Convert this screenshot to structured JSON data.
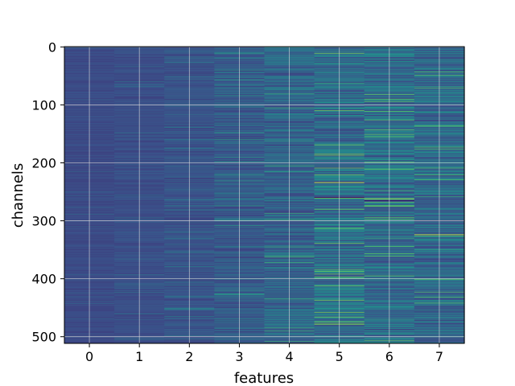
{
  "chart_data": {
    "type": "heatmap",
    "title": "",
    "xlabel": "features",
    "ylabel": "channels",
    "x_ticks": [
      0,
      1,
      2,
      3,
      4,
      5,
      6,
      7
    ],
    "y_ticks": [
      0,
      100,
      200,
      300,
      400,
      500
    ],
    "xlim": [
      -0.5,
      7.5
    ],
    "ylim": [
      511.5,
      -0.5
    ],
    "grid": true,
    "colormap": "viridis",
    "rows": 512,
    "columns": 8,
    "background_color": "#3b528b",
    "grid_color": "#d9d9d9",
    "column_intensity": [
      0.05,
      0.07,
      0.1,
      0.16,
      0.2,
      0.28,
      0.26,
      0.24
    ],
    "highlights": [
      {
        "feature": 4,
        "channel": 81,
        "value": 0.6
      },
      {
        "feature": 4,
        "channel": 162,
        "value": 0.55
      },
      {
        "feature": 4,
        "channel": 215,
        "value": 0.55
      },
      {
        "feature": 4,
        "channel": 266,
        "value": 0.45
      },
      {
        "feature": 4,
        "channel": 345,
        "value": 0.6
      },
      {
        "feature": 5,
        "channel": 8,
        "value": 0.55
      },
      {
        "feature": 5,
        "channel": 63,
        "value": 0.6
      },
      {
        "feature": 5,
        "channel": 182,
        "value": 0.5
      },
      {
        "feature": 5,
        "channel": 234,
        "value": 1.0
      },
      {
        "feature": 5,
        "channel": 260,
        "value": 0.0
      },
      {
        "feature": 5,
        "channel": 384,
        "value": 0.75
      },
      {
        "feature": 5,
        "channel": 435,
        "value": 0.55
      },
      {
        "feature": 6,
        "channel": 12,
        "value": 0.5
      },
      {
        "feature": 6,
        "channel": 210,
        "value": 0.55
      },
      {
        "feature": 6,
        "channel": 248,
        "value": 0.65
      },
      {
        "feature": 6,
        "channel": 262,
        "value": 0.95
      },
      {
        "feature": 6,
        "channel": 265,
        "value": 0.0
      },
      {
        "feature": 6,
        "channel": 330,
        "value": 0.6
      },
      {
        "feature": 6,
        "channel": 470,
        "value": 0.55
      },
      {
        "feature": 7,
        "channel": 68,
        "value": 0.55
      },
      {
        "feature": 7,
        "channel": 137,
        "value": 0.6
      },
      {
        "feature": 7,
        "channel": 200,
        "value": 0.5
      },
      {
        "feature": 7,
        "channel": 258,
        "value": 0.6
      },
      {
        "feature": 7,
        "channel": 300,
        "value": 0.0
      },
      {
        "feature": 7,
        "channel": 324,
        "value": 0.95
      },
      {
        "feature": 7,
        "channel": 350,
        "value": 0.55
      },
      {
        "feature": 7,
        "channel": 400,
        "value": 0.55
      }
    ]
  }
}
